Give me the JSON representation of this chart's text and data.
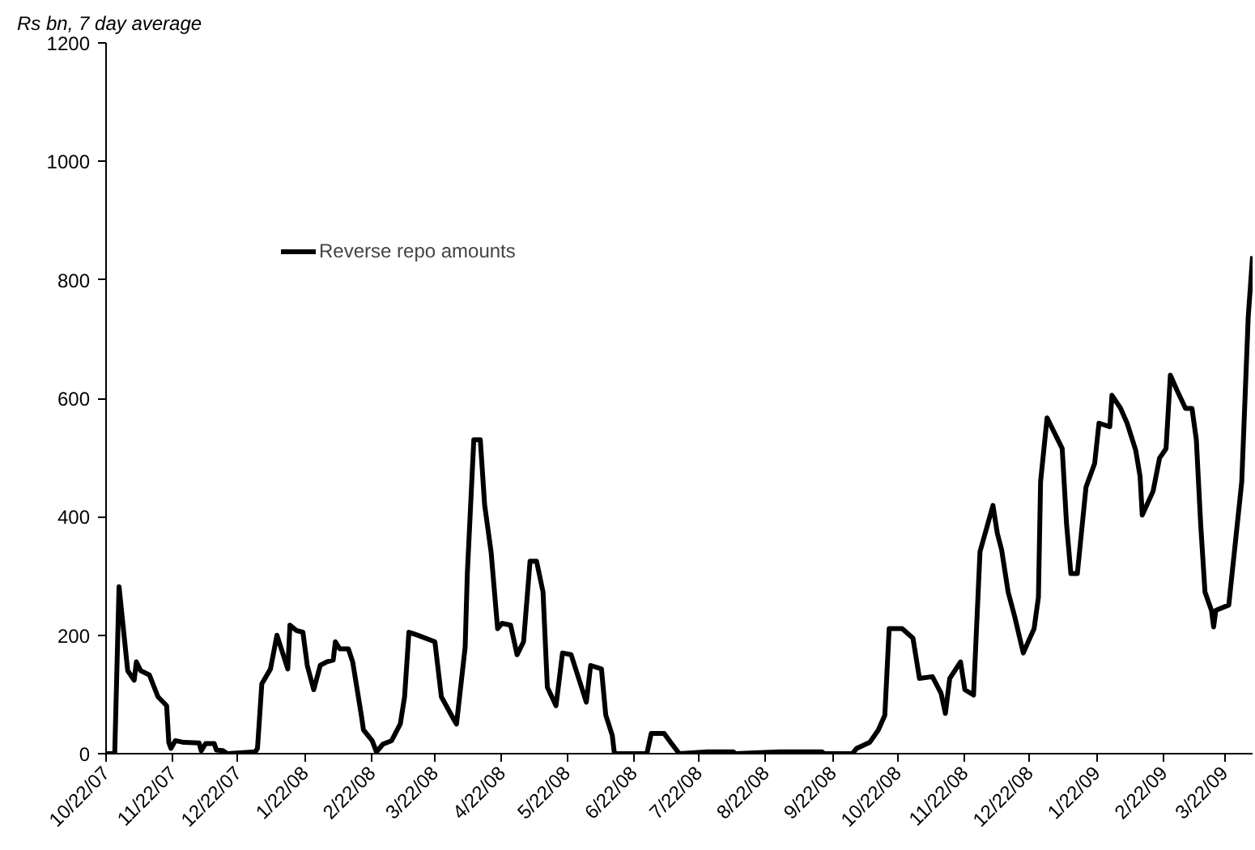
{
  "chart_data": {
    "type": "line",
    "ylabel": "Rs bn, 7 day average",
    "x": [
      "2007-10-22",
      "2007-10-26",
      "2007-10-28",
      "2007-11-01",
      "2007-11-04",
      "2007-11-05",
      "2007-11-07",
      "2007-11-11",
      "2007-11-15",
      "2007-11-19",
      "2007-11-20",
      "2007-11-21",
      "2007-11-23",
      "2007-11-27",
      "2007-12-04",
      "2007-12-05",
      "2007-12-07",
      "2007-12-11",
      "2007-12-12",
      "2007-12-15",
      "2007-12-17",
      "2007-12-30",
      "2007-12-31",
      "2008-01-02",
      "2008-01-06",
      "2008-01-09",
      "2008-01-14",
      "2008-01-15",
      "2008-01-18",
      "2008-01-21",
      "2008-01-23",
      "2008-01-26",
      "2008-01-29",
      "2008-02-01",
      "2008-02-04",
      "2008-02-05",
      "2008-02-07",
      "2008-02-11",
      "2008-02-13",
      "2008-02-17",
      "2008-02-18",
      "2008-02-22",
      "2008-02-24",
      "2008-02-27",
      "2008-03-02",
      "2008-03-06",
      "2008-03-08",
      "2008-03-10",
      "2008-03-14",
      "2008-03-22",
      "2008-03-25",
      "2008-03-31",
      "2008-04-01",
      "2008-04-05",
      "2008-04-06",
      "2008-04-09",
      "2008-04-12",
      "2008-04-14",
      "2008-04-17",
      "2008-04-20",
      "2008-04-22",
      "2008-04-26",
      "2008-04-29",
      "2008-05-02",
      "2008-05-05",
      "2008-05-08",
      "2008-05-11",
      "2008-05-13",
      "2008-05-17",
      "2008-05-20",
      "2008-05-24",
      "2008-05-31",
      "2008-06-02",
      "2008-06-07",
      "2008-06-09",
      "2008-06-12",
      "2008-06-13",
      "2008-06-28",
      "2008-06-30",
      "2008-07-06",
      "2008-07-09",
      "2008-07-13",
      "2008-07-26",
      "2008-08-07",
      "2008-08-08",
      "2008-08-28",
      "2008-09-17",
      "2008-09-18",
      "2008-10-01",
      "2008-10-03",
      "2008-10-09",
      "2008-10-13",
      "2008-10-16",
      "2008-10-18",
      "2008-10-24",
      "2008-10-29",
      "2008-11-01",
      "2008-11-07",
      "2008-11-11",
      "2008-11-13",
      "2008-11-15",
      "2008-11-20",
      "2008-11-22",
      "2008-11-26",
      "2008-11-29",
      "2008-12-05",
      "2008-12-07",
      "2008-12-09",
      "2008-12-12",
      "2008-12-15",
      "2008-12-19",
      "2008-12-24",
      "2008-12-26",
      "2008-12-27",
      "2008-12-30",
      "2009-01-06",
      "2009-01-08",
      "2009-01-10",
      "2009-01-13",
      "2009-01-17",
      "2009-01-21",
      "2009-01-23",
      "2009-01-28",
      "2009-01-29",
      "2009-02-02",
      "2009-02-05",
      "2009-02-09",
      "2009-02-11",
      "2009-02-12",
      "2009-02-17",
      "2009-02-20",
      "2009-02-23",
      "2009-02-25",
      "2009-02-28",
      "2009-03-04",
      "2009-03-07",
      "2009-03-09",
      "2009-03-11",
      "2009-03-13",
      "2009-03-16",
      "2009-03-17",
      "2009-03-18",
      "2009-03-24",
      "2009-03-30",
      "2009-04-02",
      "2009-04-04"
    ],
    "series": [
      {
        "name": "Reverse repo amounts",
        "color": "#000000",
        "values": [
          0,
          0,
          282,
          140,
          124,
          155,
          140,
          133,
          96,
          81,
          19,
          9,
          22,
          19,
          18,
          5,
          17,
          17,
          6,
          5,
          0,
          3,
          9,
          118,
          143,
          200,
          143,
          217,
          208,
          205,
          149,
          108,
          149,
          155,
          158,
          189,
          177,
          177,
          155,
          65,
          40,
          22,
          3,
          16,
          22,
          50,
          96,
          205,
          200,
          189,
          96,
          56,
          50,
          180,
          304,
          530,
          530,
          420,
          340,
          211,
          220,
          217,
          167,
          189,
          325,
          325,
          273,
          112,
          81,
          170,
          167,
          87,
          149,
          143,
          65,
          31,
          0,
          0,
          34,
          34,
          19,
          0,
          3,
          3,
          0,
          3,
          3,
          0,
          0,
          9,
          19,
          40,
          65,
          211,
          211,
          195,
          127,
          130,
          102,
          68,
          127,
          155,
          108,
          99,
          341,
          419,
          372,
          344,
          273,
          232,
          170,
          211,
          264,
          459,
          567,
          515,
          388,
          304,
          304,
          450,
          490,
          558,
          552,
          605,
          583,
          558,
          512,
          468,
          403,
          443,
          499,
          515,
          639,
          614,
          583,
          583,
          530,
          388,
          273,
          242,
          214,
          242,
          251,
          459,
          738,
          840
        ]
      }
    ],
    "xlim": [
      "2007-10-22",
      "2009-04-04"
    ],
    "xticks": [
      {
        "value": "2007-10-22",
        "label": "10/22/07"
      },
      {
        "value": "2007-11-22",
        "label": "11/22/07"
      },
      {
        "value": "2007-12-22",
        "label": "12/22/07"
      },
      {
        "value": "2008-01-22",
        "label": "1/22/08"
      },
      {
        "value": "2008-02-22",
        "label": "2/22/08"
      },
      {
        "value": "2008-03-22",
        "label": "3/22/08"
      },
      {
        "value": "2008-04-22",
        "label": "4/22/08"
      },
      {
        "value": "2008-05-22",
        "label": "5/22/08"
      },
      {
        "value": "2008-06-22",
        "label": "6/22/08"
      },
      {
        "value": "2008-07-22",
        "label": "7/22/08"
      },
      {
        "value": "2008-08-22",
        "label": "8/22/08"
      },
      {
        "value": "2008-09-22",
        "label": "9/22/08"
      },
      {
        "value": "2008-10-22",
        "label": "10/22/08"
      },
      {
        "value": "2008-11-22",
        "label": "11/22/08"
      },
      {
        "value": "2008-12-22",
        "label": "12/22/08"
      },
      {
        "value": "2009-01-22",
        "label": "1/22/09"
      },
      {
        "value": "2009-02-22",
        "label": "2/22/09"
      },
      {
        "value": "2009-03-22",
        "label": "3/22/09"
      }
    ],
    "ylim": [
      0,
      1200
    ],
    "yticks": [
      0,
      200,
      400,
      600,
      800,
      1000,
      1200
    ],
    "legend": "top left",
    "marker": "none",
    "line_style": "solid"
  }
}
